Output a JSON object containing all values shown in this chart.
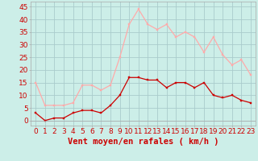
{
  "hours": [
    0,
    1,
    2,
    3,
    4,
    5,
    6,
    7,
    8,
    9,
    10,
    11,
    12,
    13,
    14,
    15,
    16,
    17,
    18,
    19,
    20,
    21,
    22,
    23
  ],
  "wind_avg": [
    3,
    0,
    1,
    1,
    3,
    4,
    4,
    3,
    6,
    10,
    17,
    17,
    16,
    16,
    13,
    15,
    15,
    13,
    15,
    10,
    9,
    10,
    8,
    7
  ],
  "wind_gust": [
    15,
    6,
    6,
    6,
    7,
    14,
    14,
    12,
    14,
    25,
    38,
    44,
    38,
    36,
    38,
    33,
    35,
    33,
    27,
    33,
    26,
    22,
    24,
    18
  ],
  "color_avg": "#cc0000",
  "color_gust": "#ffaaaa",
  "bg_color": "#cceee8",
  "grid_color": "#aacccc",
  "xlabel": "Vent moyen/en rafales ( km/h )",
  "ylim": [
    -2,
    47
  ],
  "xlim": [
    -0.5,
    23.5
  ],
  "yticks": [
    0,
    5,
    10,
    15,
    20,
    25,
    30,
    35,
    40,
    45
  ],
  "tick_fontsize": 6.5,
  "xlabel_fontsize": 7.5,
  "marker_size": 2.0,
  "linewidth": 0.9
}
